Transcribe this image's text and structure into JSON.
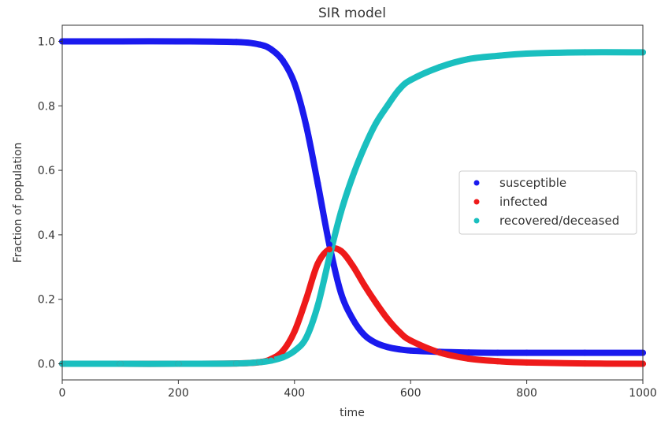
{
  "chart_data": {
    "type": "scatter",
    "title": "SIR model",
    "xlabel": "time",
    "ylabel": "Fraction of population",
    "xlim": [
      0,
      1000
    ],
    "ylim": [
      -0.05,
      1.05
    ],
    "xticks": [
      "0",
      "200",
      "400",
      "600",
      "800",
      "1000"
    ],
    "yticks": [
      "0.0",
      "0.2",
      "0.4",
      "0.6",
      "0.8",
      "1.0"
    ],
    "grid": false,
    "legend_position": "center-right",
    "x": [
      0,
      100,
      200,
      300,
      340,
      360,
      380,
      400,
      420,
      440,
      460,
      480,
      500,
      520,
      540,
      560,
      580,
      600,
      650,
      700,
      750,
      800,
      900,
      1000
    ],
    "series": [
      {
        "name": "susceptible",
        "color": "#1a1aee",
        "values": [
          1.0,
          1.0,
          1.0,
          0.998,
          0.99,
          0.975,
          0.94,
          0.87,
          0.74,
          0.56,
          0.37,
          0.22,
          0.14,
          0.09,
          0.065,
          0.052,
          0.045,
          0.041,
          0.037,
          0.035,
          0.034,
          0.034,
          0.034,
          0.034
        ]
      },
      {
        "name": "infected",
        "color": "#ee1a1a",
        "values": [
          0.0,
          0.0,
          0.0,
          0.001,
          0.005,
          0.015,
          0.04,
          0.1,
          0.2,
          0.31,
          0.355,
          0.35,
          0.305,
          0.245,
          0.19,
          0.14,
          0.1,
          0.072,
          0.035,
          0.016,
          0.008,
          0.004,
          0.001,
          0.0
        ]
      },
      {
        "name": "recovered/deceased",
        "color": "#1abfbf",
        "values": [
          0.0,
          0.0,
          0.0,
          0.001,
          0.005,
          0.01,
          0.02,
          0.04,
          0.08,
          0.18,
          0.33,
          0.47,
          0.58,
          0.67,
          0.745,
          0.8,
          0.85,
          0.88,
          0.92,
          0.945,
          0.955,
          0.962,
          0.966,
          0.966
        ]
      }
    ]
  }
}
